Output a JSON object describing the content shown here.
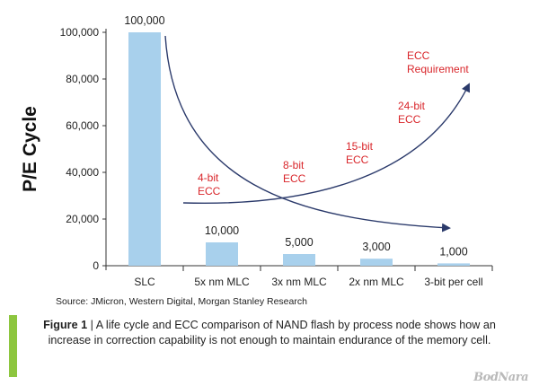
{
  "chart_data": {
    "type": "bar",
    "ylabel": "P/E Cycle",
    "categories": [
      "SLC",
      "5x nm MLC",
      "3x nm MLC",
      "2x nm MLC",
      "3-bit per cell"
    ],
    "values": [
      100000,
      10000,
      5000,
      3000,
      1000
    ],
    "data_labels": [
      "100,000",
      "10,000",
      "5,000",
      "3,000",
      "1,000"
    ],
    "ylim": [
      0,
      100000
    ],
    "yticks": [
      0,
      20000,
      40000,
      60000,
      80000,
      100000
    ],
    "ytick_labels": [
      "0",
      "20,000",
      "40,000",
      "60,000",
      "80,000",
      "100,000"
    ],
    "grid": false,
    "bar_color": "#a8d0ec",
    "annotation_color": "#d9262b",
    "arrow_color": "#2b3a6b",
    "annotations": [
      {
        "lines": [
          "4-bit",
          "ECC"
        ]
      },
      {
        "lines": [
          "8-bit",
          "ECC"
        ]
      },
      {
        "lines": [
          "15-bit",
          "ECC"
        ]
      },
      {
        "lines": [
          "24-bit",
          "ECC"
        ]
      },
      {
        "lines": [
          "ECC",
          "Requirement"
        ]
      }
    ]
  },
  "source": "Source: JMicron, Western Digital, Morgan Stanley Research",
  "caption": {
    "label": "Figure 1",
    "separator": " | ",
    "text": "A life cycle and ECC comparison of NAND flash by process node shows how an increase in correction capability is not enough to maintain endurance of the memory cell."
  },
  "watermark": "BodNara",
  "accent_color": "#8dc63f"
}
